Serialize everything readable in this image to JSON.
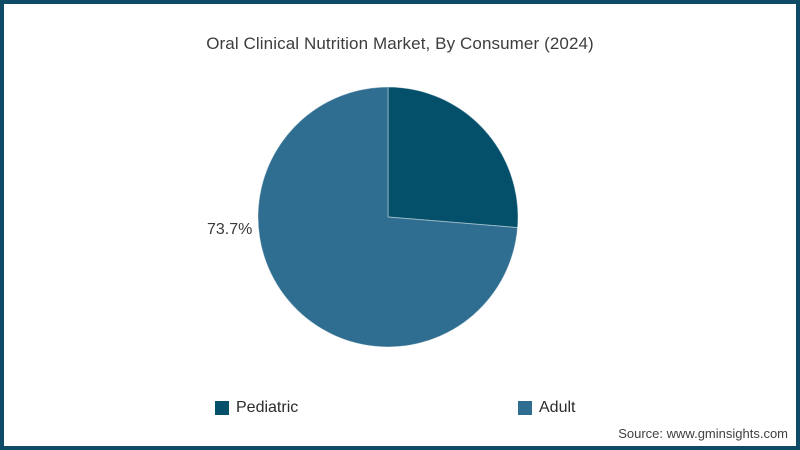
{
  "title": "Oral Clinical Nutrition Market, By Consumer (2024)",
  "source": "Source: www.gminsights.com",
  "pie_label": "73.7%",
  "colors": {
    "pediatric": "#04506b",
    "adult": "#2f6e91",
    "frame_border": "#0f4a66",
    "title_text": "#3d3d3d"
  },
  "legend": {
    "items": [
      {
        "label": "Pediatric",
        "color": "#04506b"
      },
      {
        "label": "Adult",
        "color": "#2f6e91"
      }
    ]
  },
  "chart_data": {
    "type": "pie",
    "title": "Oral Clinical Nutrition Market, By Consumer (2024)",
    "categories": [
      "Pediatric",
      "Adult"
    ],
    "values": [
      26.3,
      73.7
    ],
    "colors": [
      "#04506b",
      "#2f6e91"
    ],
    "data_labels": [
      "",
      "73.7%"
    ],
    "start_angle_deg": 0,
    "direction": "clockwise",
    "legend_position": "bottom",
    "source": "Source: www.gminsights.com"
  }
}
